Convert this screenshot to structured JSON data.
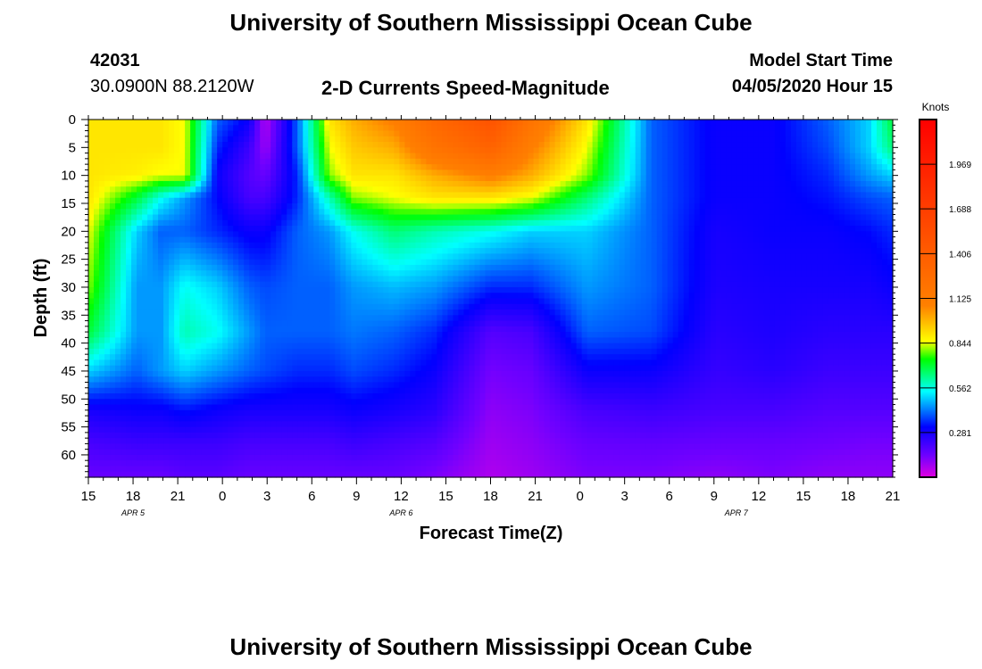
{
  "header": {
    "title": "University of Southern Mississippi Ocean Cube",
    "station_id": "42031",
    "station_coords": "30.0900N 88.2120W",
    "plot_title": "2-D Currents Speed-Magnitude",
    "model_start_label": "Model Start Time",
    "model_start_value": "04/05/2020 Hour 15"
  },
  "footer": {
    "title": "University of Southern Mississippi Ocean Cube"
  },
  "chart_data": {
    "type": "heatmap",
    "xlabel": "Forecast Time(Z)",
    "ylabel": "Depth (ft)",
    "x_tick_labels": [
      "15",
      "18",
      "21",
      "0",
      "3",
      "6",
      "9",
      "12",
      "15",
      "18",
      "21",
      "0",
      "3",
      "6",
      "9",
      "12",
      "15",
      "18",
      "21"
    ],
    "date_labels": [
      {
        "text": "APR 5",
        "hour_index": 1
      },
      {
        "text": "APR 6",
        "hour_index": 7
      },
      {
        "text": "APR 7",
        "hour_index": 14.5
      }
    ],
    "y_tick_labels": [
      "0",
      "5",
      "10",
      "15",
      "20",
      "25",
      "30",
      "35",
      "40",
      "45",
      "50",
      "55",
      "60"
    ],
    "ylim": [
      0,
      64
    ],
    "colorbar": {
      "unit": "Knots",
      "tick_labels": [
        "1.969",
        "1.688",
        "1.406",
        "1.125",
        "0.844",
        "0.562",
        "0.281"
      ],
      "ticks": [
        1.969,
        1.688,
        1.406,
        1.125,
        0.844,
        0.562,
        0.281
      ],
      "range": [
        0,
        2.25
      ]
    },
    "time_nodes": [
      0,
      0.06,
      0.09,
      0.12,
      0.16,
      0.2,
      0.22,
      0.26,
      0.3,
      0.33,
      0.38,
      0.43,
      0.5,
      0.55,
      0.62,
      0.7,
      0.78,
      0.85,
      0.92,
      0.97,
      1.0
    ],
    "depth_nodes": [
      0,
      5,
      10,
      14,
      20,
      30,
      38,
      45,
      52,
      58,
      64
    ],
    "speed_grid": [
      [
        0.9,
        0.9,
        0.9,
        0.9,
        0.85,
        0.8,
        0.7,
        0.5,
        0.28,
        0.2,
        0.15
      ],
      [
        0.9,
        0.9,
        0.88,
        0.7,
        0.5,
        0.45,
        0.45,
        0.4,
        0.3,
        0.22,
        0.15
      ],
      [
        0.9,
        0.9,
        0.85,
        0.55,
        0.4,
        0.45,
        0.45,
        0.45,
        0.3,
        0.22,
        0.15
      ],
      [
        0.85,
        0.85,
        0.85,
        0.45,
        0.4,
        0.55,
        0.6,
        0.5,
        0.33,
        0.22,
        0.17
      ],
      [
        0.4,
        0.35,
        0.3,
        0.32,
        0.35,
        0.5,
        0.55,
        0.45,
        0.3,
        0.22,
        0.17
      ],
      [
        0.3,
        0.22,
        0.18,
        0.2,
        0.3,
        0.4,
        0.45,
        0.4,
        0.28,
        0.2,
        0.15
      ],
      [
        0.05,
        0.08,
        0.15,
        0.2,
        0.3,
        0.38,
        0.4,
        0.38,
        0.28,
        0.2,
        0.15
      ],
      [
        0.4,
        0.4,
        0.35,
        0.35,
        0.4,
        0.4,
        0.4,
        0.35,
        0.28,
        0.2,
        0.15
      ],
      [
        0.9,
        0.85,
        0.8,
        0.6,
        0.45,
        0.4,
        0.4,
        0.35,
        0.28,
        0.2,
        0.15
      ],
      [
        1.0,
        0.95,
        0.9,
        0.8,
        0.55,
        0.45,
        0.42,
        0.38,
        0.3,
        0.22,
        0.15
      ],
      [
        1.1,
        1.0,
        0.9,
        0.85,
        0.65,
        0.48,
        0.4,
        0.35,
        0.28,
        0.2,
        0.15
      ],
      [
        1.3,
        1.2,
        1.0,
        0.9,
        0.6,
        0.45,
        0.35,
        0.3,
        0.25,
        0.18,
        0.12
      ],
      [
        1.5,
        1.35,
        1.1,
        0.9,
        0.55,
        0.35,
        0.18,
        0.13,
        0.1,
        0.08,
        0.06
      ],
      [
        1.2,
        1.1,
        1.0,
        0.85,
        0.5,
        0.35,
        0.2,
        0.15,
        0.12,
        0.1,
        0.08
      ],
      [
        0.9,
        0.85,
        0.8,
        0.65,
        0.5,
        0.45,
        0.4,
        0.3,
        0.2,
        0.15,
        0.12
      ],
      [
        0.4,
        0.4,
        0.4,
        0.4,
        0.4,
        0.4,
        0.38,
        0.3,
        0.22,
        0.16,
        0.12
      ],
      [
        0.3,
        0.3,
        0.3,
        0.3,
        0.28,
        0.27,
        0.25,
        0.23,
        0.2,
        0.15,
        0.1
      ],
      [
        0.3,
        0.3,
        0.3,
        0.3,
        0.3,
        0.28,
        0.27,
        0.25,
        0.2,
        0.15,
        0.12
      ],
      [
        0.4,
        0.38,
        0.35,
        0.33,
        0.3,
        0.28,
        0.25,
        0.22,
        0.18,
        0.14,
        0.1
      ],
      [
        0.5,
        0.5,
        0.45,
        0.38,
        0.32,
        0.28,
        0.25,
        0.22,
        0.18,
        0.13,
        0.1
      ],
      [
        0.7,
        0.65,
        0.5,
        0.4,
        0.35,
        0.3,
        0.25,
        0.22,
        0.18,
        0.13,
        0.1
      ]
    ]
  }
}
